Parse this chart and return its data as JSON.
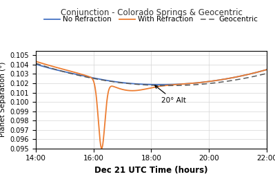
{
  "title": "Conjunction - Colorado Springs & Geocentric",
  "xlabel": "Dec 21 UTC Time (hours)",
  "ylabel": "Planet Separation (°)",
  "xlim": [
    14,
    22
  ],
  "ylim": [
    0.095,
    0.1055
  ],
  "yticks": [
    0.095,
    0.096,
    0.097,
    0.098,
    0.099,
    0.1,
    0.101,
    0.102,
    0.103,
    0.104,
    0.105
  ],
  "xtick_labels": [
    "14:00",
    "16:00",
    "18:00",
    "20:00",
    "22:00"
  ],
  "xtick_positions": [
    14,
    16,
    18,
    20,
    22
  ],
  "annotation_text": "20° Alt",
  "line_no_refraction_color": "#4472C4",
  "line_with_refraction_color": "#ED7D31",
  "line_geocentric_color": "#595959",
  "background_color": "#ffffff",
  "legend_labels": [
    "No Refraction",
    "With Refraction",
    "Geocentric"
  ]
}
